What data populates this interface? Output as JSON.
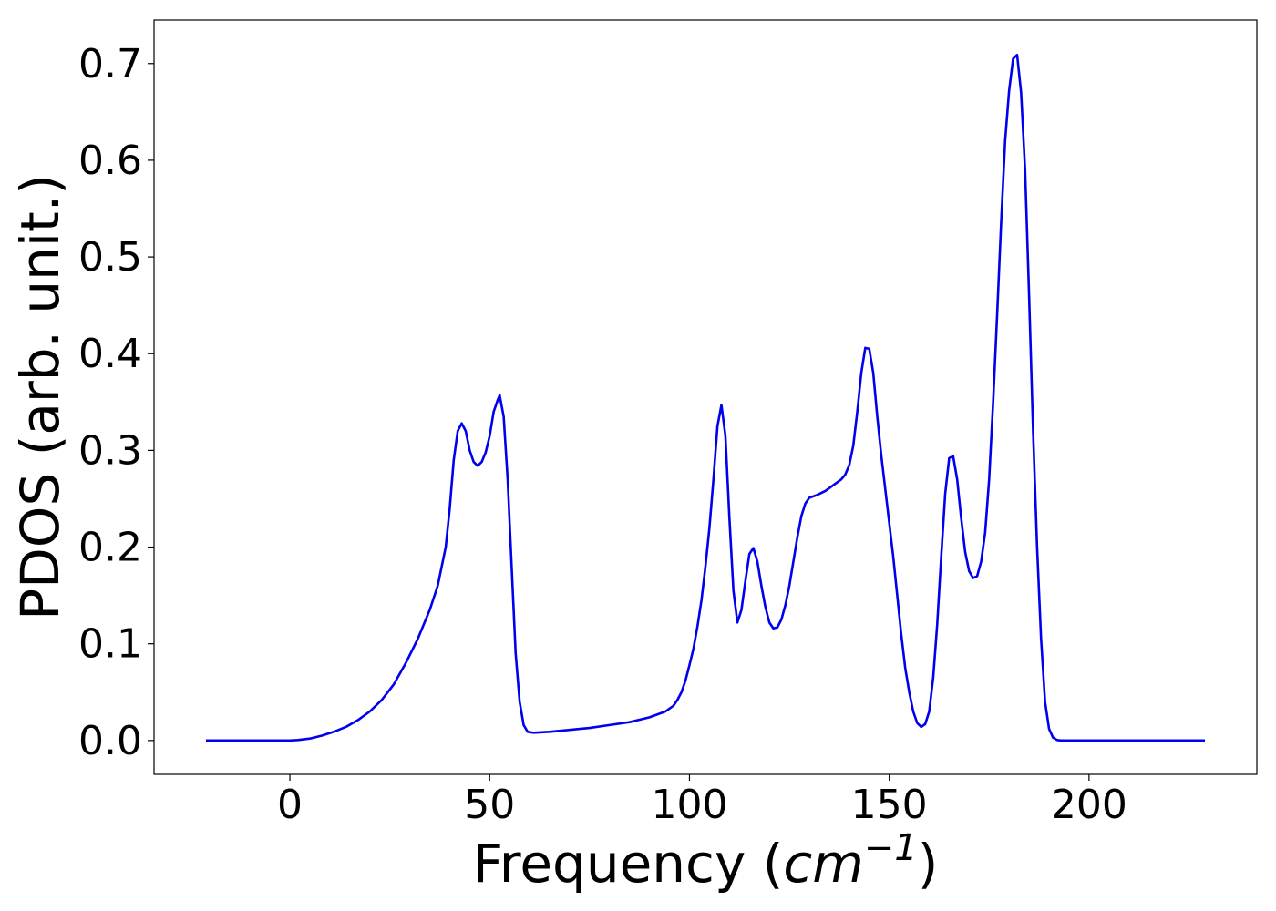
{
  "chart_data": {
    "type": "line",
    "title": "",
    "xlabel_prefix": "Frequency (",
    "xlabel_unit": "cm",
    "xlabel_exponent": "−1",
    "xlabel_suffix": ")",
    "ylabel": "PDOS (arb. unit.)",
    "xlim": [
      -34,
      242
    ],
    "ylim": [
      -0.035,
      0.745
    ],
    "xticks": [
      0,
      50,
      100,
      150,
      200
    ],
    "xtick_labels": [
      "0",
      "50",
      "100",
      "150",
      "200"
    ],
    "yticks": [
      0.0,
      0.1,
      0.2,
      0.3,
      0.4,
      0.5,
      0.6,
      0.7
    ],
    "ytick_labels": [
      "0.0",
      "0.1",
      "0.2",
      "0.3",
      "0.4",
      "0.5",
      "0.6",
      "0.7"
    ],
    "grid": false,
    "line_color": "#0000ee",
    "series": [
      {
        "points": [
          [
            -21,
            0.0
          ],
          [
            -10,
            0.0
          ],
          [
            0,
            0.0
          ],
          [
            2,
            0.0005
          ],
          [
            5,
            0.002
          ],
          [
            8,
            0.005
          ],
          [
            11,
            0.009
          ],
          [
            14,
            0.014
          ],
          [
            17,
            0.021
          ],
          [
            20,
            0.03
          ],
          [
            23,
            0.042
          ],
          [
            26,
            0.058
          ],
          [
            29,
            0.08
          ],
          [
            32,
            0.105
          ],
          [
            35,
            0.135
          ],
          [
            37,
            0.16
          ],
          [
            39,
            0.2
          ],
          [
            40,
            0.24
          ],
          [
            41,
            0.29
          ],
          [
            42,
            0.32
          ],
          [
            43,
            0.328
          ],
          [
            44,
            0.32
          ],
          [
            45,
            0.3
          ],
          [
            46,
            0.288
          ],
          [
            47,
            0.284
          ],
          [
            48,
            0.288
          ],
          [
            49,
            0.298
          ],
          [
            50,
            0.315
          ],
          [
            51,
            0.34
          ],
          [
            52,
            0.352
          ],
          [
            52.5,
            0.357
          ],
          [
            53.5,
            0.335
          ],
          [
            54.5,
            0.27
          ],
          [
            55.5,
            0.18
          ],
          [
            56.5,
            0.09
          ],
          [
            57.5,
            0.04
          ],
          [
            58.5,
            0.016
          ],
          [
            59.5,
            0.009
          ],
          [
            61,
            0.008
          ],
          [
            65,
            0.009
          ],
          [
            70,
            0.011
          ],
          [
            75,
            0.013
          ],
          [
            80,
            0.016
          ],
          [
            85,
            0.019
          ],
          [
            90,
            0.024
          ],
          [
            94,
            0.03
          ],
          [
            96,
            0.036
          ],
          [
            97,
            0.042
          ],
          [
            98,
            0.05
          ],
          [
            99,
            0.062
          ],
          [
            100,
            0.078
          ],
          [
            101,
            0.095
          ],
          [
            102,
            0.118
          ],
          [
            103,
            0.145
          ],
          [
            104,
            0.18
          ],
          [
            105,
            0.22
          ],
          [
            106,
            0.27
          ],
          [
            107,
            0.325
          ],
          [
            108,
            0.347
          ],
          [
            109,
            0.315
          ],
          [
            110,
            0.23
          ],
          [
            111,
            0.155
          ],
          [
            112,
            0.122
          ],
          [
            113,
            0.135
          ],
          [
            114,
            0.165
          ],
          [
            115,
            0.193
          ],
          [
            116,
            0.199
          ],
          [
            117,
            0.185
          ],
          [
            118,
            0.16
          ],
          [
            119,
            0.138
          ],
          [
            120,
            0.122
          ],
          [
            121,
            0.116
          ],
          [
            122,
            0.117
          ],
          [
            123,
            0.125
          ],
          [
            124,
            0.14
          ],
          [
            125,
            0.16
          ],
          [
            126,
            0.185
          ],
          [
            127,
            0.21
          ],
          [
            128,
            0.232
          ],
          [
            129,
            0.245
          ],
          [
            130,
            0.251
          ],
          [
            132,
            0.254
          ],
          [
            134,
            0.258
          ],
          [
            136,
            0.264
          ],
          [
            138,
            0.27
          ],
          [
            139,
            0.275
          ],
          [
            140,
            0.285
          ],
          [
            141,
            0.305
          ],
          [
            142,
            0.34
          ],
          [
            143,
            0.38
          ],
          [
            144,
            0.406
          ],
          [
            145,
            0.405
          ],
          [
            146,
            0.38
          ],
          [
            147,
            0.335
          ],
          [
            148,
            0.295
          ],
          [
            149,
            0.26
          ],
          [
            150,
            0.225
          ],
          [
            151,
            0.19
          ],
          [
            152,
            0.15
          ],
          [
            153,
            0.11
          ],
          [
            154,
            0.075
          ],
          [
            155,
            0.05
          ],
          [
            156,
            0.03
          ],
          [
            157,
            0.018
          ],
          [
            158,
            0.014
          ],
          [
            159,
            0.017
          ],
          [
            160,
            0.03
          ],
          [
            161,
            0.065
          ],
          [
            162,
            0.12
          ],
          [
            163,
            0.19
          ],
          [
            164,
            0.255
          ],
          [
            165,
            0.292
          ],
          [
            166,
            0.294
          ],
          [
            167,
            0.27
          ],
          [
            168,
            0.23
          ],
          [
            169,
            0.195
          ],
          [
            170,
            0.175
          ],
          [
            171,
            0.168
          ],
          [
            172,
            0.17
          ],
          [
            173,
            0.185
          ],
          [
            174,
            0.215
          ],
          [
            175,
            0.27
          ],
          [
            176,
            0.35
          ],
          [
            177,
            0.44
          ],
          [
            178,
            0.535
          ],
          [
            179,
            0.62
          ],
          [
            180,
            0.672
          ],
          [
            181,
            0.705
          ],
          [
            182,
            0.709
          ],
          [
            183,
            0.67
          ],
          [
            184,
            0.59
          ],
          [
            185,
            0.46
          ],
          [
            186,
            0.32
          ],
          [
            187,
            0.2
          ],
          [
            188,
            0.105
          ],
          [
            189,
            0.04
          ],
          [
            190,
            0.012
          ],
          [
            191,
            0.003
          ],
          [
            192,
            0.0005
          ],
          [
            193,
            0.0
          ],
          [
            200,
            0.0
          ],
          [
            215,
            0.0
          ],
          [
            229,
            0.0
          ]
        ]
      }
    ]
  }
}
